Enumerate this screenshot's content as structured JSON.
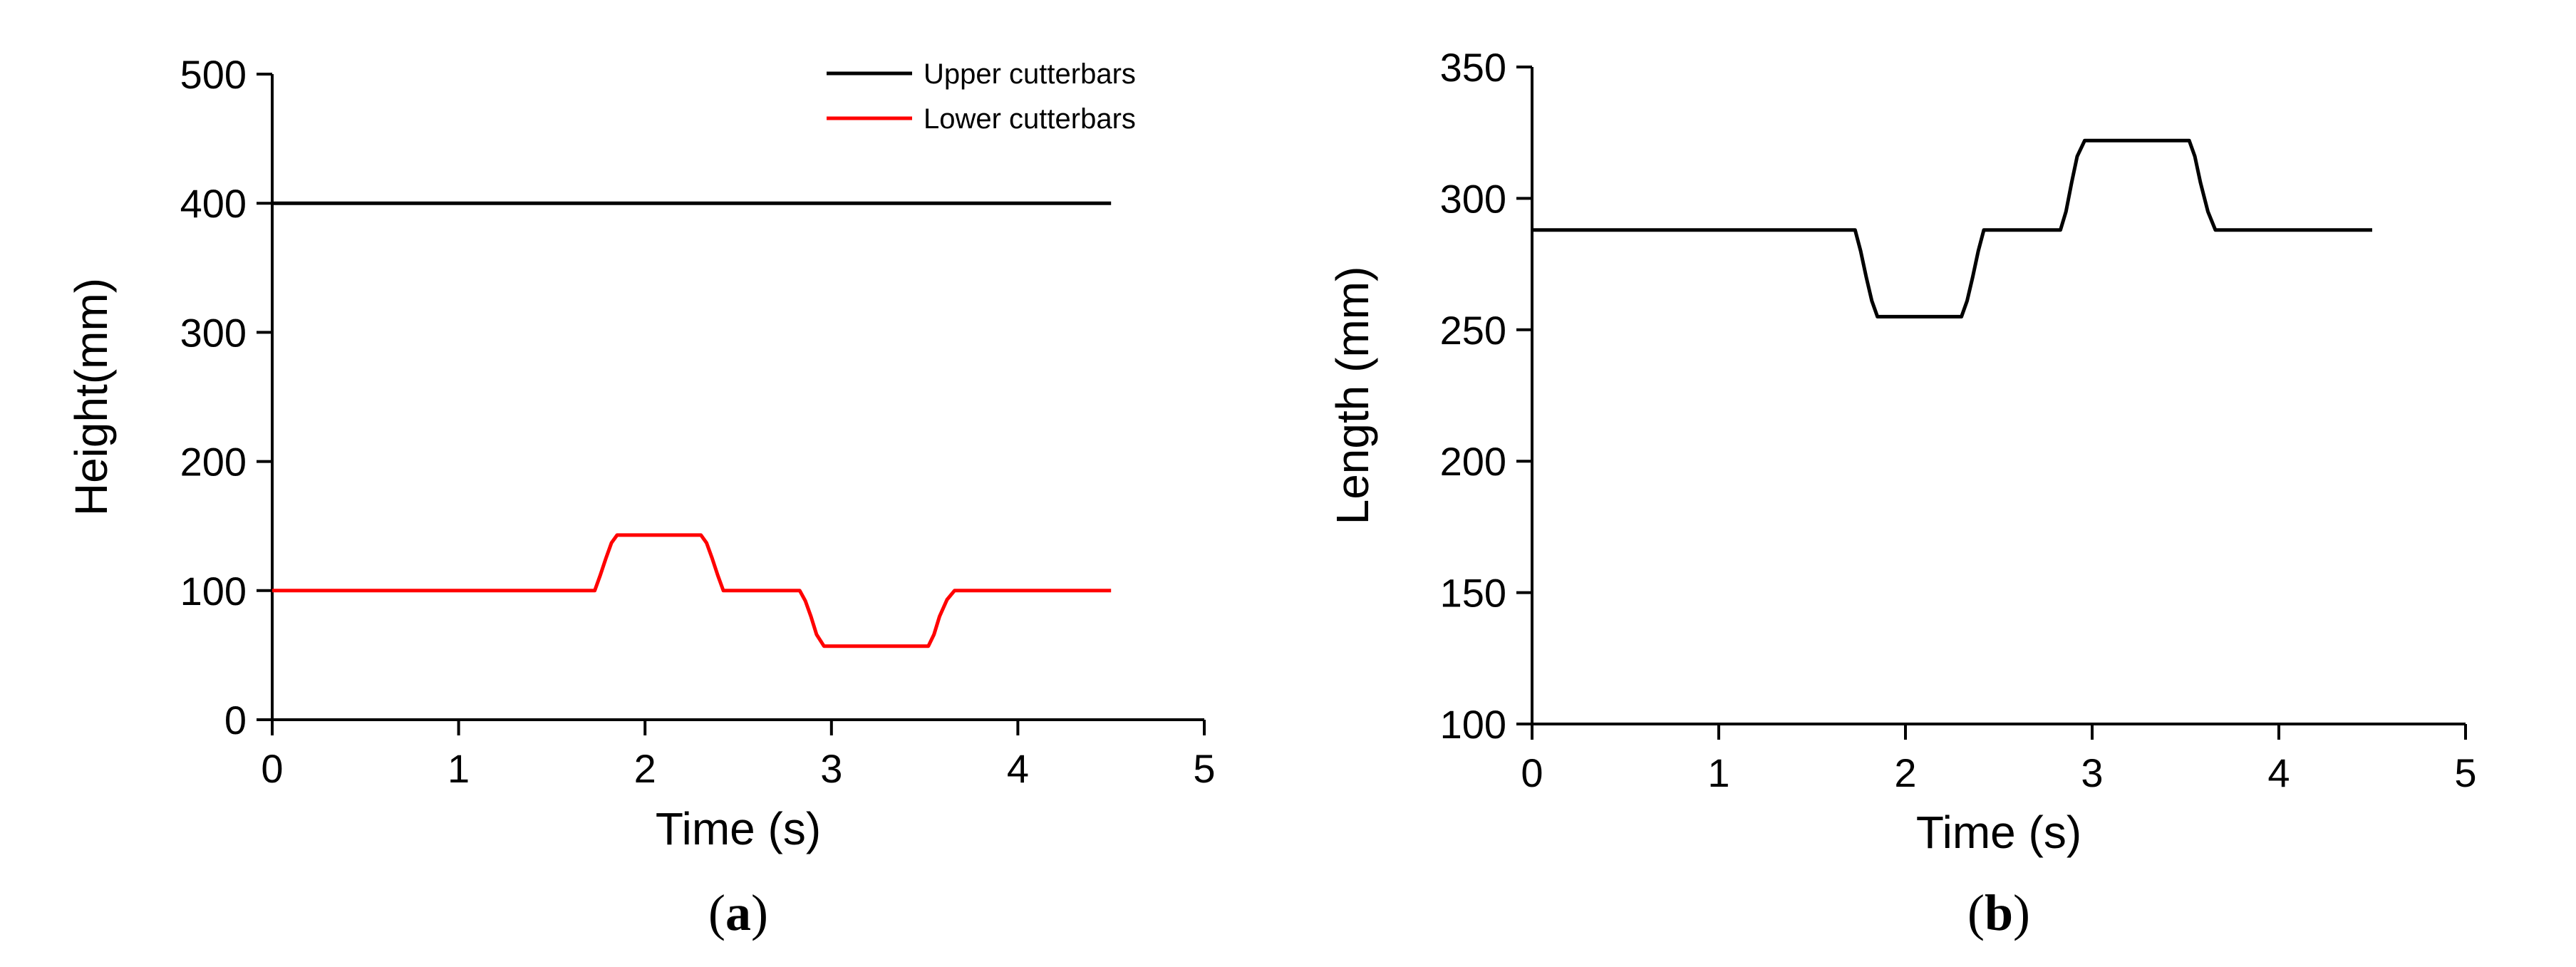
{
  "chart_data": [
    {
      "type": "line",
      "panel_label": "a",
      "xlabel": "Time (s)",
      "ylabel": "Height(mm)",
      "xlim": [
        0,
        5
      ],
      "ylim": [
        0,
        500
      ],
      "xticks": [
        0,
        1,
        2,
        3,
        4,
        5
      ],
      "yticks": [
        0,
        100,
        200,
        300,
        400,
        500
      ],
      "legend": "top-right",
      "series": [
        {
          "name": "Upper cutterbars",
          "color": "#000000",
          "x": [
            0,
            4.5
          ],
          "y": [
            400,
            400
          ]
        },
        {
          "name": "Lower cutterbars",
          "color": "#ff0000",
          "x": [
            0,
            1.73,
            1.76,
            1.79,
            1.82,
            1.85,
            2.3,
            2.33,
            2.36,
            2.39,
            2.42,
            2.83,
            2.86,
            2.89,
            2.92,
            2.96,
            3.52,
            3.55,
            3.58,
            3.62,
            3.66,
            4.5
          ],
          "y": [
            100,
            100,
            112,
            125,
            137,
            143,
            143,
            137,
            125,
            112,
            100,
            100,
            92,
            80,
            66,
            57,
            57,
            66,
            80,
            93,
            100,
            100
          ]
        }
      ]
    },
    {
      "type": "line",
      "panel_label": "b",
      "xlabel": "Time (s)",
      "ylabel": "Length (mm)",
      "xlim": [
        0,
        5
      ],
      "ylim": [
        100,
        350
      ],
      "xticks": [
        0,
        1,
        2,
        3,
        4,
        5
      ],
      "yticks": [
        100,
        150,
        200,
        250,
        300,
        350
      ],
      "legend": "none",
      "series": [
        {
          "color": "#000000",
          "x": [
            0,
            1.73,
            1.76,
            1.79,
            1.82,
            1.85,
            2.3,
            2.33,
            2.36,
            2.39,
            2.42,
            2.83,
            2.86,
            2.89,
            2.92,
            2.96,
            3.52,
            3.55,
            3.58,
            3.62,
            3.66,
            4.5
          ],
          "y": [
            288,
            288,
            280,
            270,
            261,
            255,
            255,
            261,
            270,
            280,
            288,
            288,
            295,
            306,
            316,
            322,
            322,
            316,
            306,
            295,
            288,
            288
          ]
        }
      ]
    }
  ]
}
